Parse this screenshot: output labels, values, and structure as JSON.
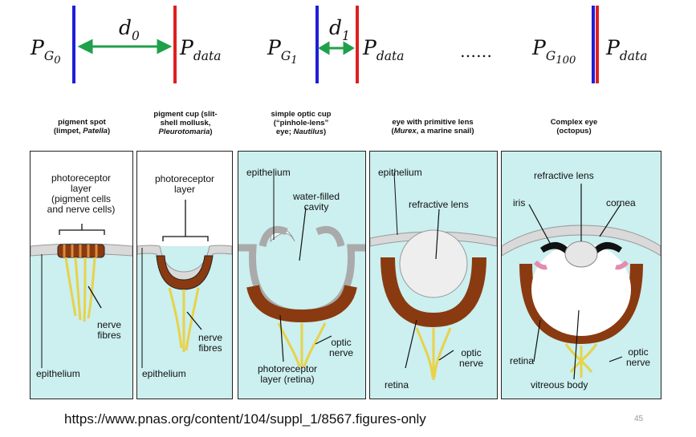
{
  "top_equation": {
    "p_g0": "P",
    "p_g0_sub": "G",
    "p_g0_subsub": "0",
    "d0": "d",
    "d0_sub": "0",
    "p_data_1": "P",
    "p_data_1_sub": "data",
    "p_g1": "P",
    "p_g1_sub": "G",
    "p_g1_subsub": "1",
    "d1": "d",
    "d1_sub": "1",
    "p_data_2": "P",
    "p_data_2_sub": "data",
    "ellipsis": "……",
    "p_g100": "P",
    "p_g100_sub": "G",
    "p_g100_subsub": "100",
    "p_data_3": "P",
    "p_data_3_sub": "data"
  },
  "captions": [
    {
      "line1": "pigment spot",
      "line2": "(limpet, ",
      "italic2": "Patella",
      "end2": ")"
    },
    {
      "line1": "pigment cup (slit-",
      "line2": "shell mollusk,",
      "italic3": "Pleurotomaria",
      "end3": ")"
    },
    {
      "line1": "simple optic cup",
      "line2": "(“pinhole-lens”",
      "line3": "eye; ",
      "italic3": "Nautilus",
      "end3": ")"
    },
    {
      "line1": "eye with primitive lens",
      "line2": "(",
      "italic2": "Murex",
      "end2": ", a marine snail)"
    },
    {
      "line1": "Complex eye",
      "line2": "(octopus)"
    }
  ],
  "panel1": {
    "photoreceptor": [
      "photoreceptor",
      "layer",
      "(pigment cells",
      "and nerve cells)"
    ],
    "nerve": [
      "nerve",
      "fibres"
    ],
    "epithelium": "epithelium"
  },
  "panel2": {
    "photoreceptor": [
      "photoreceptor",
      "layer"
    ],
    "nerve": [
      "nerve",
      "fibres"
    ],
    "epithelium": "epithelium"
  },
  "panel3": {
    "epithelium": "epithelium",
    "cavity": [
      "water-filled",
      "cavity"
    ],
    "optic": [
      "optic",
      "nerve"
    ],
    "photoreceptor": [
      "photoreceptor",
      "layer (retina)"
    ]
  },
  "panel4": {
    "epithelium": "epithelium",
    "lens": "refractive lens",
    "optic": [
      "optic",
      "nerve"
    ],
    "retina": "retina"
  },
  "panel5": {
    "lens": "refractive lens",
    "iris": "iris",
    "cornea": "cornea",
    "retina": "retina",
    "optic": [
      "optic",
      "nerve"
    ],
    "vitreous": "vitreous body"
  },
  "footer": {
    "url": "https://www.pnas.org/content/104/suppl_1/8567.figures-only",
    "page_number": "45"
  },
  "colors": {
    "blue_bar": "#1f1fd8",
    "red_bar": "#e01f1f",
    "arrow": "#1fa04a",
    "panel_bg": "#ccefef",
    "pigment": "#8a3a10",
    "nerve": "#e8d24a"
  }
}
